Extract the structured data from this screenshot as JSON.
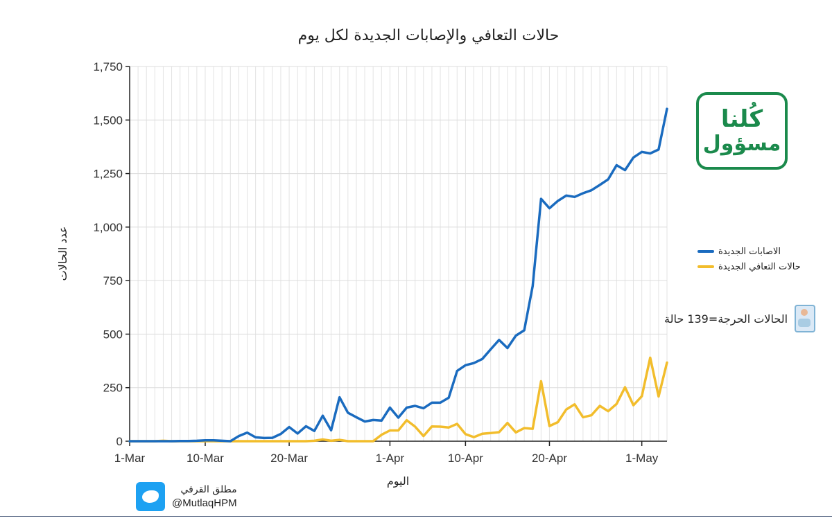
{
  "chart_data": {
    "type": "line",
    "title": "حالات التعافي والإصابات الجديدة لكل يوم",
    "xlabel": "اليوم",
    "ylabel": "عدد الحالات",
    "x_start": "2020-03-01",
    "x_tick_labels": [
      "1-Mar",
      "10-Mar",
      "20-Mar",
      "1-Apr",
      "10-Apr",
      "20-Apr",
      "1-May"
    ],
    "x_tick_days": [
      0,
      9,
      19,
      31,
      40,
      50,
      61
    ],
    "ylim": [
      0,
      1750
    ],
    "y_ticks": [
      0,
      250,
      500,
      750,
      1000,
      1250,
      1500,
      1750
    ],
    "y_tick_labels": [
      "0",
      "250",
      "500",
      "750",
      "1,000",
      "1,250",
      "1,500",
      "1,750"
    ],
    "grid": true,
    "legend_position": "right",
    "series": [
      {
        "name": "الاصابات الجديدة",
        "color": "#1a6bbf",
        "values": [
          0,
          0,
          0,
          0,
          0,
          0,
          1,
          1,
          2,
          4,
          4,
          2,
          0,
          24,
          40,
          18,
          15,
          16,
          34,
          66,
          36,
          70,
          48,
          119,
          51,
          205,
          133,
          112,
          92,
          99,
          96,
          157,
          110,
          157,
          165,
          154,
          180,
          180,
          203,
          328,
          355,
          365,
          384,
          429,
          473,
          435,
          493,
          518,
          725,
          1132,
          1088,
          1122,
          1147,
          1141,
          1158,
          1172,
          1197,
          1223,
          1289,
          1266,
          1325,
          1351,
          1344,
          1362,
          1552
        ]
      },
      {
        "name": "حالات التعافي الجديدة",
        "color": "#f2bd2c",
        "values": [
          0,
          0,
          0,
          0,
          2,
          0,
          0,
          0,
          0,
          0,
          0,
          0,
          0,
          0,
          0,
          0,
          0,
          0,
          0,
          0,
          0,
          0,
          2,
          8,
          2,
          6,
          0,
          0,
          0,
          0,
          30,
          50,
          50,
          98,
          68,
          24,
          69,
          68,
          64,
          81,
          33,
          19,
          35,
          38,
          42,
          85,
          41,
          61,
          58,
          280,
          71,
          89,
          148,
          172,
          112,
          121,
          165,
          140,
          174,
          252,
          168,
          210,
          390,
          209,
          367
        ]
      }
    ]
  },
  "legend": {
    "new_cases": "الاصابات الجديدة",
    "new_recoveries": "حالات التعافي الجديدة"
  },
  "annotation": {
    "critical_cases": "الحالات الحرجة=139 حالة",
    "critical_icon": "patient-bed-icon"
  },
  "logo": {
    "line1": "كُلنا",
    "line2": "مسؤول",
    "color": "#1b8a4c"
  },
  "credit": {
    "name": "مطلق القرفي",
    "handle": "@MutlaqHPM",
    "icon": "twitter-icon"
  }
}
